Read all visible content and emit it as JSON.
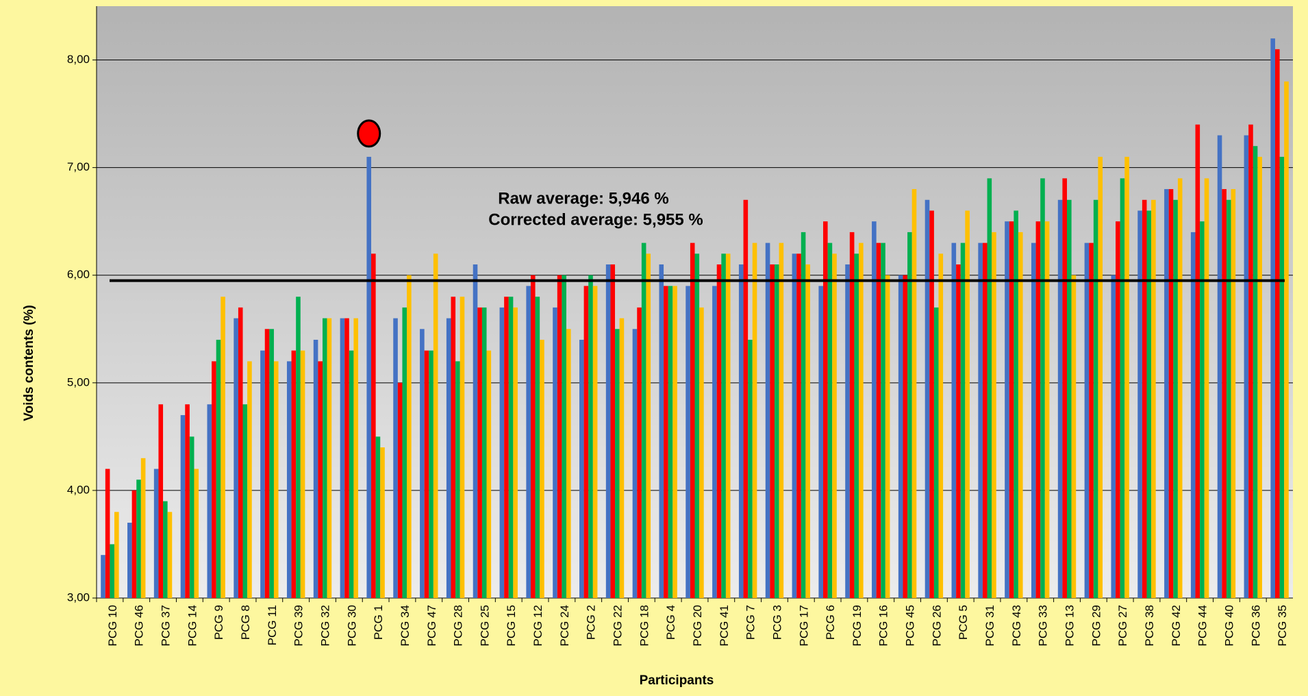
{
  "chart_data": {
    "type": "bar",
    "xlabel": "Participants",
    "ylabel": "Voids contents (%)",
    "annotations": [
      "Raw average: 5,946 %",
      "Corrected average: 5,955 %"
    ],
    "average_line": 5.95,
    "outlier_marker": {
      "category_index": 10,
      "series_index": 0,
      "color": "#ff0000"
    },
    "categories": [
      "PCG 10",
      "PCG 46",
      "PCG 37",
      "PCG 14",
      "PCG 9",
      "PCG 8",
      "PCG 11",
      "PCG 39",
      "PCG 32",
      "PCG 30",
      "PCG 1",
      "PCG 34",
      "PCG 47",
      "PCG 28",
      "PCG 25",
      "PCG 15",
      "PCG 12",
      "PCG 24",
      "PCG 2",
      "PCG 22",
      "PCG 18",
      "PCG 4",
      "PCG 20",
      "PCG 41",
      "PCG 7",
      "PCG 3",
      "PCG 17",
      "PCG 6",
      "PCG 19",
      "PCG 16",
      "PCG 45",
      "PCG 26",
      "PCG 5",
      "PCG 31",
      "PCG 43",
      "PCG 33",
      "PCG 13",
      "PCG 29",
      "PCG 27",
      "PCG 38",
      "PCG 42",
      "PCG 44",
      "PCG 40",
      "PCG 36",
      "PCG 35"
    ],
    "series": [
      {
        "color": "#4472c4",
        "values": [
          3.4,
          3.7,
          4.2,
          4.7,
          4.8,
          5.6,
          5.3,
          5.2,
          5.4,
          5.6,
          7.1,
          5.6,
          5.5,
          5.6,
          6.1,
          5.7,
          5.9,
          5.7,
          5.4,
          6.1,
          5.5,
          6.1,
          5.9,
          5.9,
          6.1,
          6.3,
          6.2,
          5.9,
          6.1,
          6.5,
          6.0,
          6.7,
          6.3,
          6.3,
          6.5,
          6.3,
          6.7,
          6.3,
          6.0,
          6.6,
          6.8,
          6.4,
          7.3,
          7.3,
          8.2
        ]
      },
      {
        "color": "#ff0000",
        "values": [
          4.2,
          4.0,
          4.8,
          4.8,
          5.2,
          5.7,
          5.5,
          5.3,
          5.2,
          5.6,
          6.2,
          5.0,
          5.3,
          5.8,
          5.7,
          5.8,
          6.0,
          6.0,
          5.9,
          6.1,
          5.7,
          5.9,
          6.3,
          6.1,
          6.7,
          6.1,
          6.2,
          6.5,
          6.4,
          6.3,
          6.0,
          6.6,
          6.1,
          6.3,
          6.5,
          6.5,
          6.9,
          6.3,
          6.5,
          6.7,
          6.8,
          7.4,
          6.8,
          7.4,
          8.1
        ]
      },
      {
        "color": "#00b050",
        "values": [
          3.5,
          4.1,
          3.9,
          4.5,
          5.4,
          4.8,
          5.5,
          5.8,
          5.6,
          5.3,
          4.5,
          5.7,
          5.3,
          5.2,
          5.7,
          5.8,
          5.8,
          6.0,
          6.0,
          5.5,
          6.3,
          5.9,
          6.2,
          6.2,
          5.4,
          6.1,
          6.4,
          6.3,
          6.2,
          6.3,
          6.4,
          5.7,
          6.3,
          6.9,
          6.6,
          6.9,
          6.7,
          6.7,
          6.9,
          6.6,
          6.7,
          6.5,
          6.7,
          7.2,
          7.1
        ]
      },
      {
        "color": "#ffc000",
        "values": [
          3.8,
          4.3,
          3.8,
          4.2,
          5.8,
          5.2,
          5.2,
          5.3,
          5.6,
          5.6,
          4.4,
          6.0,
          6.2,
          5.8,
          5.3,
          5.7,
          5.4,
          5.5,
          5.9,
          5.6,
          6.2,
          5.9,
          5.7,
          6.2,
          6.3,
          6.3,
          6.1,
          6.2,
          6.3,
          6.0,
          6.8,
          6.2,
          6.6,
          6.4,
          6.4,
          6.5,
          6.0,
          7.1,
          7.1,
          6.7,
          6.9,
          6.9,
          6.8,
          7.1,
          7.8
        ]
      }
    ],
    "ylim": [
      3,
      8.5
    ],
    "yticks": [
      {
        "value": 3,
        "label": "3,00"
      },
      {
        "value": 4,
        "label": "4,00"
      },
      {
        "value": 5,
        "label": "5,00"
      },
      {
        "value": 6,
        "label": "6,00"
      },
      {
        "value": 7,
        "label": "7,00"
      },
      {
        "value": 8,
        "label": "8,00"
      }
    ],
    "grid": true
  }
}
